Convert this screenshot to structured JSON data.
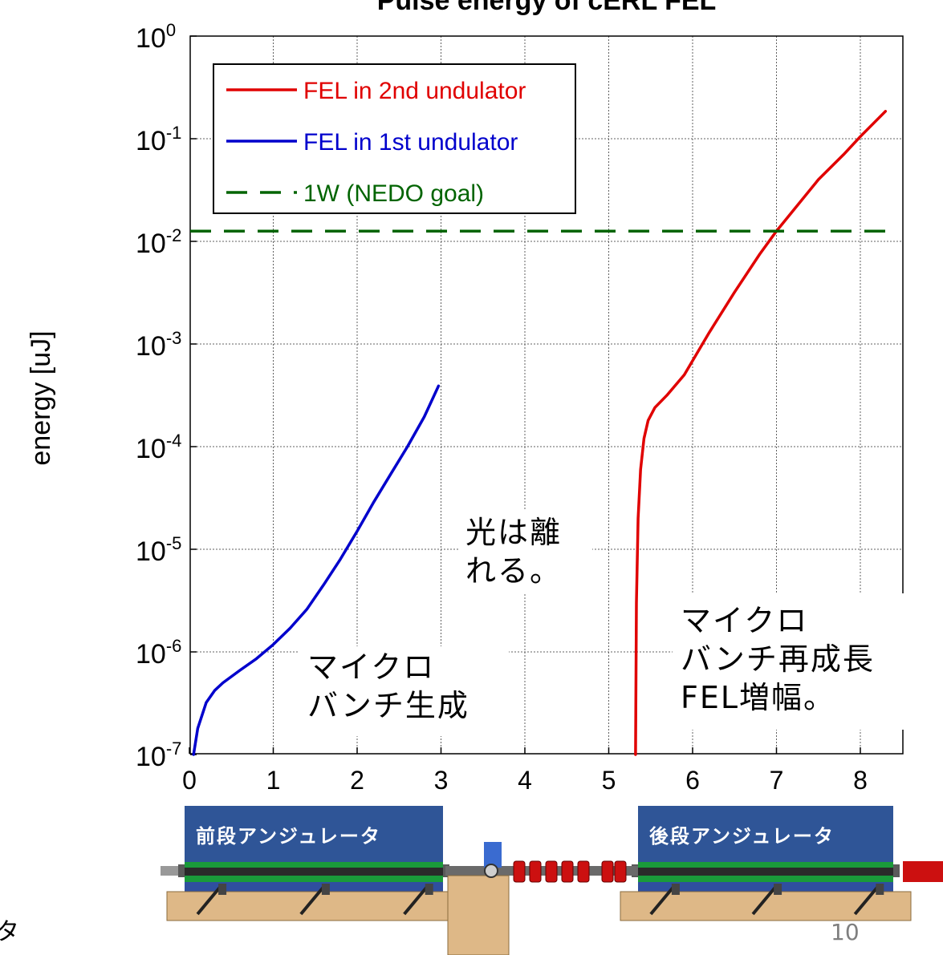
{
  "chart_data": {
    "type": "line",
    "title": "Pulse energy of cERL FEL",
    "ylabel": "energy [uJ]",
    "xlabel": "",
    "xlim": [
      0,
      8.4
    ],
    "ylim": [
      1e-07,
      1
    ],
    "yscale": "log",
    "grid": true,
    "legend_position": "top-left",
    "x_ticks": [
      "0",
      "1",
      "2",
      "3",
      "4",
      "5",
      "6",
      "7",
      "8"
    ],
    "y_ticks": [
      {
        "base": "10",
        "exp": "0"
      },
      {
        "base": "10",
        "exp": "-1"
      },
      {
        "base": "10",
        "exp": "-2"
      },
      {
        "base": "10",
        "exp": "-3"
      },
      {
        "base": "10",
        "exp": "-4"
      },
      {
        "base": "10",
        "exp": "-5"
      },
      {
        "base": "10",
        "exp": "-6"
      },
      {
        "base": "10",
        "exp": "-7"
      }
    ],
    "series": [
      {
        "name": "FEL in 2nd undulator",
        "color": "#e00000",
        "style": "solid",
        "x": [
          5.32,
          5.33,
          5.35,
          5.38,
          5.42,
          5.47,
          5.55,
          5.7,
          5.9,
          6.2,
          6.5,
          6.8,
          7.0,
          7.2,
          7.5,
          7.8,
          8.0,
          8.3
        ],
        "y": [
          1e-07,
          3e-06,
          2e-05,
          6e-05,
          0.00012,
          0.00018,
          0.00024,
          0.00032,
          0.0005,
          0.0013,
          0.0032,
          0.0075,
          0.0126,
          0.02,
          0.04,
          0.07,
          0.105,
          0.185
        ]
      },
      {
        "name": "FEL in 1st undulator",
        "color": "#0000cc",
        "style": "solid",
        "x": [
          0.05,
          0.1,
          0.2,
          0.3,
          0.4,
          0.6,
          0.8,
          1.0,
          1.2,
          1.4,
          1.6,
          1.8,
          2.0,
          2.2,
          2.4,
          2.6,
          2.8,
          2.97
        ],
        "y": [
          1e-07,
          1.8e-07,
          3.2e-07,
          4.2e-07,
          5e-07,
          6.6e-07,
          8.6e-07,
          1.18e-06,
          1.7e-06,
          2.6e-06,
          4.5e-06,
          8e-06,
          1.5e-05,
          2.9e-05,
          5.4e-05,
          0.0001,
          0.000195,
          0.00039
        ]
      },
      {
        "name": "1W (NEDO goal)",
        "color": "#006400",
        "style": "dashed",
        "x": [
          0,
          8.4
        ],
        "y": [
          0.0126,
          0.0126
        ]
      }
    ]
  },
  "annotations": {
    "light_leaves": [
      "光は離",
      "れる。"
    ],
    "microbunch_gen": [
      "マイクロ",
      "バンチ生成"
    ],
    "microbunch_regrow": [
      "マイクロ",
      "バンチ再成長",
      "FEL増幅。"
    ]
  },
  "undulators": {
    "front": "前段アンジュレータ",
    "rear": "後段アンジュレータ"
  },
  "left_edge_char": "タ",
  "page_number": "10"
}
